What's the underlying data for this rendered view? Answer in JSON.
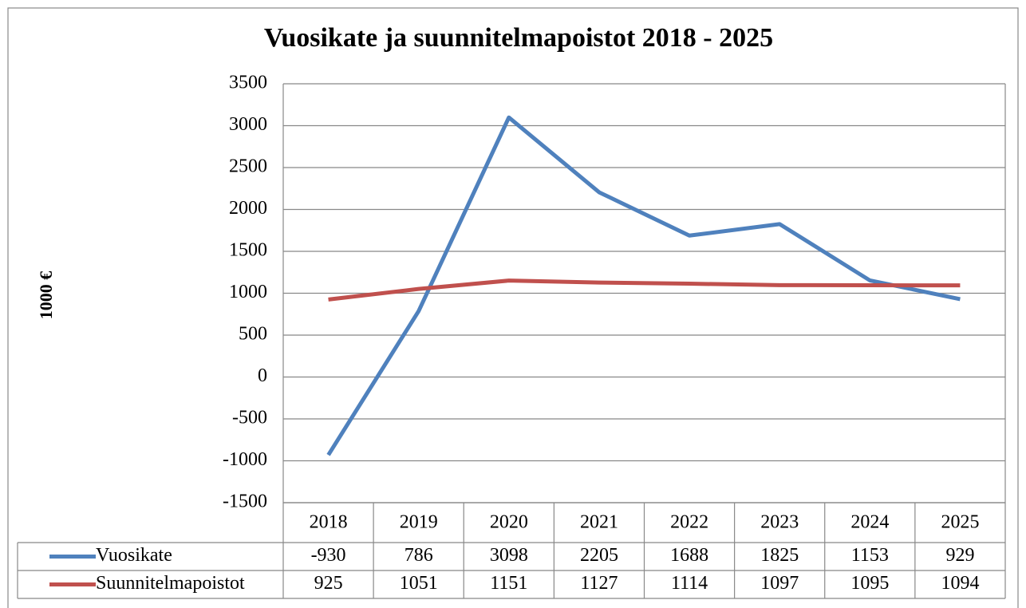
{
  "chart_data": {
    "type": "line",
    "title": "Vuosikate ja suunnitelmapoistot 2018 - 2025",
    "ylabel": "1000 €",
    "categories": [
      "2018",
      "2019",
      "2020",
      "2021",
      "2022",
      "2023",
      "2024",
      "2025"
    ],
    "series": [
      {
        "name": "Vuosikate",
        "color": "#4f81bd",
        "values": [
          -930,
          786,
          3098,
          2205,
          1688,
          1825,
          1153,
          929
        ]
      },
      {
        "name": "Suunnitelmapoistot",
        "color": "#c0504d",
        "values": [
          925,
          1051,
          1151,
          1127,
          1114,
          1097,
          1095,
          1094
        ]
      }
    ],
    "ylim": [
      -1500,
      3500
    ],
    "yticks": [
      -1500,
      -1000,
      -500,
      0,
      500,
      1000,
      1500,
      2000,
      2500,
      3000,
      3500
    ],
    "grid": true
  }
}
